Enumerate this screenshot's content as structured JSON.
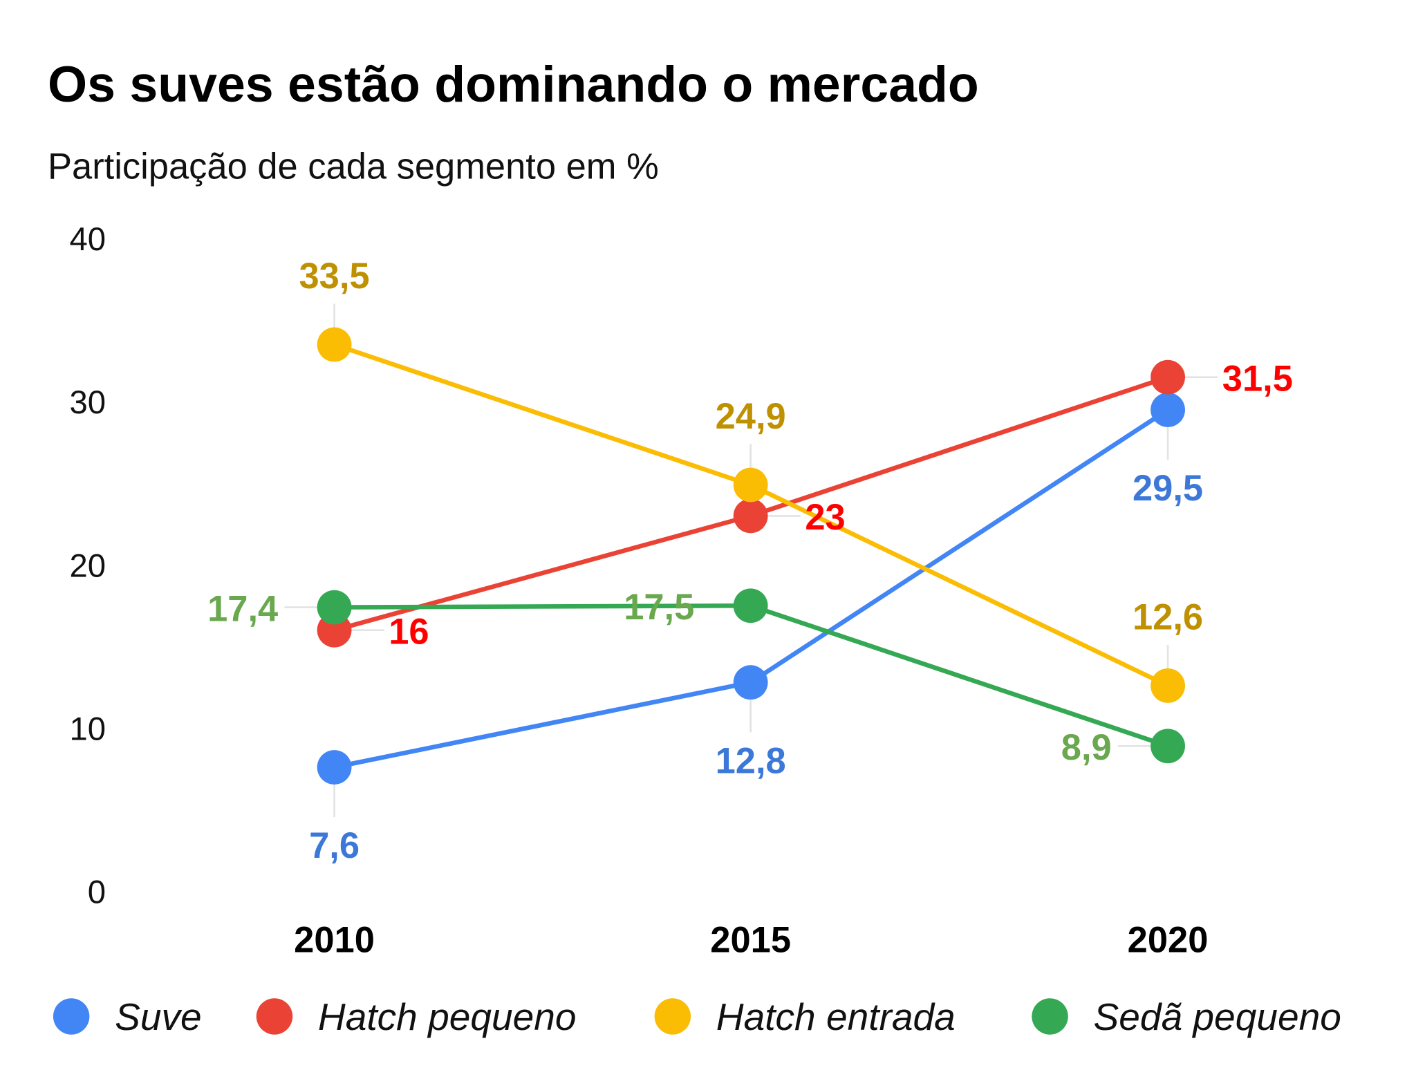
{
  "chart_data": {
    "type": "line",
    "title": "Os suves estão dominando o mercado",
    "subtitle": "Participação de cada segmento em %",
    "xlabel": "",
    "ylabel": "",
    "categories": [
      "2010",
      "2015",
      "2020"
    ],
    "ylim": [
      0,
      40
    ],
    "yticks": [
      "0",
      "10",
      "20",
      "30",
      "40"
    ],
    "grid": false,
    "legend_position": "bottom",
    "series": [
      {
        "name": "Suve",
        "color": "#4285f4",
        "label_color": "#3c78d8",
        "values": [
          7.6,
          12.8,
          29.5
        ],
        "labels": [
          "7,6",
          "12,8",
          "29,5"
        ],
        "label_side": "below"
      },
      {
        "name": "Hatch pequeno",
        "color": "#ea4335",
        "label_color": "#ff0000",
        "values": [
          16,
          23,
          31.5
        ],
        "labels": [
          "16",
          "23",
          "31,5"
        ],
        "label_side": "right"
      },
      {
        "name": "Hatch entrada",
        "color": "#fbbc04",
        "label_color": "#bf9000",
        "values": [
          33.5,
          24.9,
          12.6
        ],
        "labels": [
          "33,5",
          "24,9",
          "12,6"
        ],
        "label_side": "above"
      },
      {
        "name": "Sedã pequeno",
        "color": "#34a853",
        "label_color": "#6aa84f",
        "values": [
          17.4,
          17.5,
          8.9
        ],
        "labels": [
          "17,4",
          "17,5",
          "8,9"
        ],
        "label_side": "left"
      }
    ]
  }
}
